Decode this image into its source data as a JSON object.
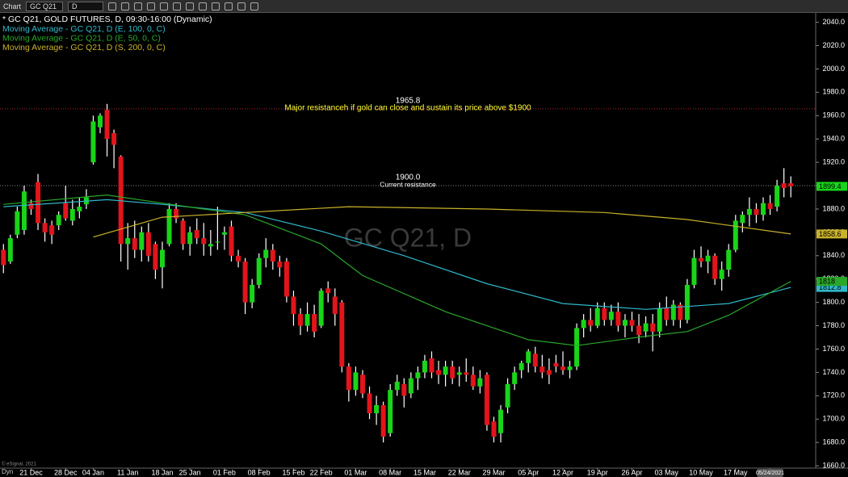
{
  "toolbar": {
    "title": "Chart",
    "symbol": "GC Q21",
    "interval": "D"
  },
  "chart_data": {
    "type": "candlestick",
    "header": "* GC Q21, GOLD FUTURES, D, 09:30-16:00 (Dynamic)",
    "watermark": "GC Q21, D",
    "up_color": "#19d419",
    "down_color": "#e3141b",
    "xlim": [
      -0.5,
      117.6
    ],
    "ylim": [
      1658,
      2048
    ],
    "yticks": [
      {
        "value": 1660,
        "label": "1660.0"
      },
      {
        "value": 1680,
        "label": "1680.0"
      },
      {
        "value": 1700,
        "label": "1700.0"
      },
      {
        "value": 1720,
        "label": "1720.0"
      },
      {
        "value": 1740,
        "label": "1740.0"
      },
      {
        "value": 1760,
        "label": "1760.0"
      },
      {
        "value": 1780,
        "label": "1780.0"
      },
      {
        "value": 1800,
        "label": "1800.0"
      },
      {
        "value": 1820,
        "label": "1820.0"
      },
      {
        "value": 1840,
        "label": "1840.0"
      },
      {
        "value": 1860,
        "label": "1860.0"
      },
      {
        "value": 1880,
        "label": "1880.0"
      },
      {
        "value": 1900,
        "label": "1900.0"
      },
      {
        "value": 1920,
        "label": "1920.0"
      },
      {
        "value": 1940,
        "label": "1940.0"
      },
      {
        "value": 1960,
        "label": "1960.0"
      },
      {
        "value": 1980,
        "label": "1980.0"
      },
      {
        "value": 2000,
        "label": "2000.0"
      },
      {
        "value": 2020,
        "label": "2020.0"
      },
      {
        "value": 2040,
        "label": "2040.0"
      }
    ],
    "xticks": [
      {
        "value": 4,
        "label": "21 Dec"
      },
      {
        "value": 9,
        "label": "28 Dec"
      },
      {
        "value": 13,
        "label": "04 Jan"
      },
      {
        "value": 18,
        "label": "11 Jan"
      },
      {
        "value": 23,
        "label": "18 Jan"
      },
      {
        "value": 27,
        "label": "25 Jan"
      },
      {
        "value": 32,
        "label": "01 Feb"
      },
      {
        "value": 37,
        "label": "08 Feb"
      },
      {
        "value": 42,
        "label": "15 Feb"
      },
      {
        "value": 46,
        "label": "22 Feb"
      },
      {
        "value": 51,
        "label": "01 Mar"
      },
      {
        "value": 56,
        "label": "08 Mar"
      },
      {
        "value": 61,
        "label": "15 Mar"
      },
      {
        "value": 66,
        "label": "22 Mar"
      },
      {
        "value": 71,
        "label": "29 Mar"
      },
      {
        "value": 76,
        "label": "05 Apr"
      },
      {
        "value": 81,
        "label": "12 Apr"
      },
      {
        "value": 86,
        "label": "19 Apr"
      },
      {
        "value": 91,
        "label": "26 Apr"
      },
      {
        "value": 96,
        "label": "03 May"
      },
      {
        "value": 101,
        "label": "10 May"
      },
      {
        "value": 106,
        "label": "17 May"
      },
      {
        "value": 111,
        "label": "05/24/2021"
      }
    ],
    "open": [
      1845,
      1835,
      1858,
      1862,
      1885,
      1903,
      1868,
      1866,
      1866,
      1885,
      1870,
      1878,
      1884,
      1920,
      1950,
      1965,
      1945,
      1925,
      1850,
      1855,
      1845,
      1860,
      1850,
      1830,
      1850,
      1880,
      1870,
      1850,
      1862,
      1855,
      1848,
      1852,
      1858,
      1865,
      1840,
      1835,
      1800,
      1815,
      1838,
      1845,
      1835,
      1835,
      1805,
      1790,
      1780,
      1790,
      1780,
      1812,
      1805,
      1800,
      1745,
      1725,
      1738,
      1722,
      1705,
      1712,
      1688,
      1725,
      1730,
      1722,
      1735,
      1740,
      1752,
      1742,
      1738,
      1745,
      1738,
      1740,
      1738,
      1728,
      1738,
      1698,
      1688,
      1710,
      1730,
      1742,
      1748,
      1756,
      1745,
      1742,
      1748,
      1745,
      1742,
      1745,
      1778,
      1785,
      1780,
      1795,
      1785,
      1792,
      1780,
      1785,
      1780,
      1775,
      1782,
      1775,
      1795,
      1785,
      1798,
      1785,
      1815,
      1838,
      1835,
      1840,
      1820,
      1828,
      1845,
      1868,
      1875,
      1880,
      1875,
      1885,
      1882,
      1902,
      1902
    ],
    "high": [
      1850,
      1858,
      1882,
      1900,
      1888,
      1910,
      1872,
      1870,
      1878,
      1900,
      1888,
      1890,
      1897,
      1960,
      1962,
      1970,
      1948,
      1926,
      1868,
      1870,
      1865,
      1868,
      1852,
      1852,
      1885,
      1885,
      1872,
      1865,
      1872,
      1868,
      1862,
      1882,
      1865,
      1870,
      1845,
      1838,
      1820,
      1842,
      1855,
      1850,
      1840,
      1838,
      1810,
      1795,
      1800,
      1798,
      1812,
      1818,
      1812,
      1802,
      1748,
      1745,
      1742,
      1728,
      1720,
      1715,
      1730,
      1738,
      1735,
      1740,
      1745,
      1755,
      1758,
      1750,
      1750,
      1750,
      1745,
      1752,
      1745,
      1742,
      1740,
      1702,
      1712,
      1735,
      1745,
      1750,
      1760,
      1762,
      1755,
      1752,
      1755,
      1758,
      1750,
      1782,
      1790,
      1795,
      1800,
      1800,
      1798,
      1800,
      1790,
      1792,
      1790,
      1788,
      1790,
      1800,
      1805,
      1802,
      1800,
      1820,
      1845,
      1848,
      1845,
      1842,
      1835,
      1850,
      1875,
      1878,
      1890,
      1885,
      1890,
      1892,
      1905,
      1915,
      1908
    ],
    "low": [
      1825,
      1833,
      1855,
      1858,
      1875,
      1862,
      1852,
      1850,
      1862,
      1870,
      1866,
      1872,
      1880,
      1918,
      1945,
      1925,
      1915,
      1835,
      1828,
      1838,
      1835,
      1835,
      1820,
      1812,
      1848,
      1868,
      1845,
      1840,
      1850,
      1840,
      1840,
      1845,
      1845,
      1835,
      1830,
      1790,
      1795,
      1812,
      1830,
      1828,
      1822,
      1800,
      1780,
      1772,
      1775,
      1770,
      1778,
      1800,
      1780,
      1740,
      1715,
      1720,
      1718,
      1700,
      1695,
      1680,
      1685,
      1720,
      1710,
      1718,
      1725,
      1735,
      1735,
      1730,
      1728,
      1730,
      1728,
      1732,
      1725,
      1722,
      1690,
      1680,
      1680,
      1705,
      1725,
      1735,
      1740,
      1740,
      1735,
      1730,
      1740,
      1738,
      1735,
      1742,
      1770,
      1775,
      1778,
      1780,
      1780,
      1775,
      1770,
      1775,
      1765,
      1770,
      1758,
      1770,
      1780,
      1780,
      1778,
      1782,
      1812,
      1830,
      1825,
      1815,
      1810,
      1822,
      1843,
      1860,
      1865,
      1868,
      1870,
      1875,
      1878,
      1890,
      1890
    ],
    "close": [
      1832,
      1855,
      1878,
      1895,
      1880,
      1868,
      1860,
      1858,
      1875,
      1872,
      1880,
      1882,
      1890,
      1955,
      1960,
      1940,
      1935,
      1850,
      1855,
      1845,
      1860,
      1840,
      1828,
      1845,
      1880,
      1872,
      1850,
      1860,
      1855,
      1850,
      1850,
      1852,
      1860,
      1840,
      1835,
      1800,
      1815,
      1838,
      1845,
      1835,
      1830,
      1805,
      1790,
      1780,
      1790,
      1775,
      1810,
      1808,
      1790,
      1745,
      1725,
      1740,
      1722,
      1705,
      1712,
      1685,
      1725,
      1732,
      1720,
      1735,
      1740,
      1750,
      1740,
      1738,
      1745,
      1735,
      1740,
      1738,
      1728,
      1735,
      1695,
      1685,
      1708,
      1730,
      1740,
      1748,
      1758,
      1745,
      1740,
      1738,
      1745,
      1742,
      1745,
      1778,
      1785,
      1780,
      1795,
      1785,
      1792,
      1780,
      1785,
      1780,
      1772,
      1782,
      1775,
      1795,
      1785,
      1798,
      1785,
      1815,
      1838,
      1835,
      1840,
      1820,
      1828,
      1845,
      1870,
      1875,
      1880,
      1875,
      1885,
      1880,
      1900,
      1898,
      1899.4
    ],
    "series": [
      {
        "name": "Moving Average - GC Q21, D (E, 100, 0, C)",
        "color": "#2fb8c9",
        "x": [
          0,
          15,
          23,
          35,
          46,
          58,
          70,
          81,
          93,
          105,
          114
        ],
        "values": [
          1882,
          1888,
          1884,
          1877,
          1861,
          1840,
          1816,
          1799,
          1794,
          1799,
          1812.8
        ]
      },
      {
        "name": "Moving Average - GC Q21, D (E, 50, 0, C)",
        "color": "#2aa82a",
        "x": [
          0,
          15,
          23,
          35,
          46,
          52,
          64,
          76,
          83,
          93,
          99,
          105,
          114
        ],
        "values": [
          1884,
          1892,
          1885,
          1875,
          1850,
          1823,
          1792,
          1768,
          1763,
          1771,
          1775,
          1789,
          1818
        ]
      },
      {
        "name": "Moving Average - GC Q21, D (S, 200, 0, C)",
        "color": "#c9b22a",
        "x": [
          13,
          23,
          35,
          50,
          70,
          87,
          99,
          114
        ],
        "values": [
          1856,
          1873,
          1877,
          1882,
          1880,
          1877,
          1871,
          1858.6
        ]
      }
    ],
    "annotations": [
      {
        "value": 1965.8,
        "value_label": "1965.8",
        "text": "Major resistanceh if gold can close and sustain its price above $1900",
        "color": "#b0222a",
        "text_color": "#ffff33"
      },
      {
        "value": 1900,
        "value_label": "1900.0",
        "text": "Current resistance",
        "color": "#888888",
        "text_color": "#ffffff"
      }
    ]
  },
  "footer": {
    "mode": "Dyn",
    "copyright": "© eSignal, 2021"
  }
}
